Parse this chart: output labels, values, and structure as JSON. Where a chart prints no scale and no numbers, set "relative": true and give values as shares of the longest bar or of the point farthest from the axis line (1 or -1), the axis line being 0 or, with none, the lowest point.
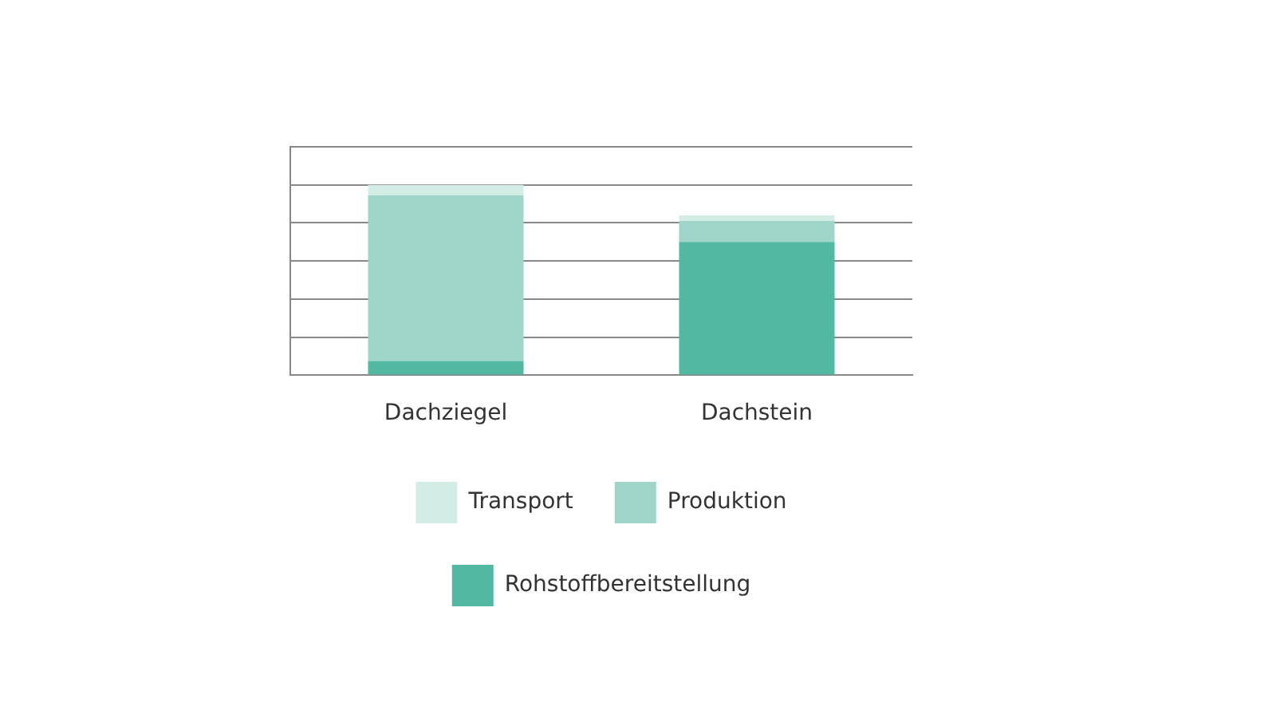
{
  "chart_data": {
    "type": "bar",
    "stacked": true,
    "relative": true,
    "categories": [
      "Dachziegel",
      "Dachstein"
    ],
    "series": [
      {
        "name": "Rohstoffbereitstellung",
        "color": "#52b8a0",
        "values": [
          0.075,
          0.7
        ]
      },
      {
        "name": "Produktion",
        "color": "#9fd5c9",
        "values": [
          0.87,
          0.11
        ]
      },
      {
        "name": "Transport",
        "color": "#d3ede6",
        "values": [
          0.055,
          0.03
        ]
      }
    ],
    "grid": "y",
    "legend": "bottom"
  }
}
